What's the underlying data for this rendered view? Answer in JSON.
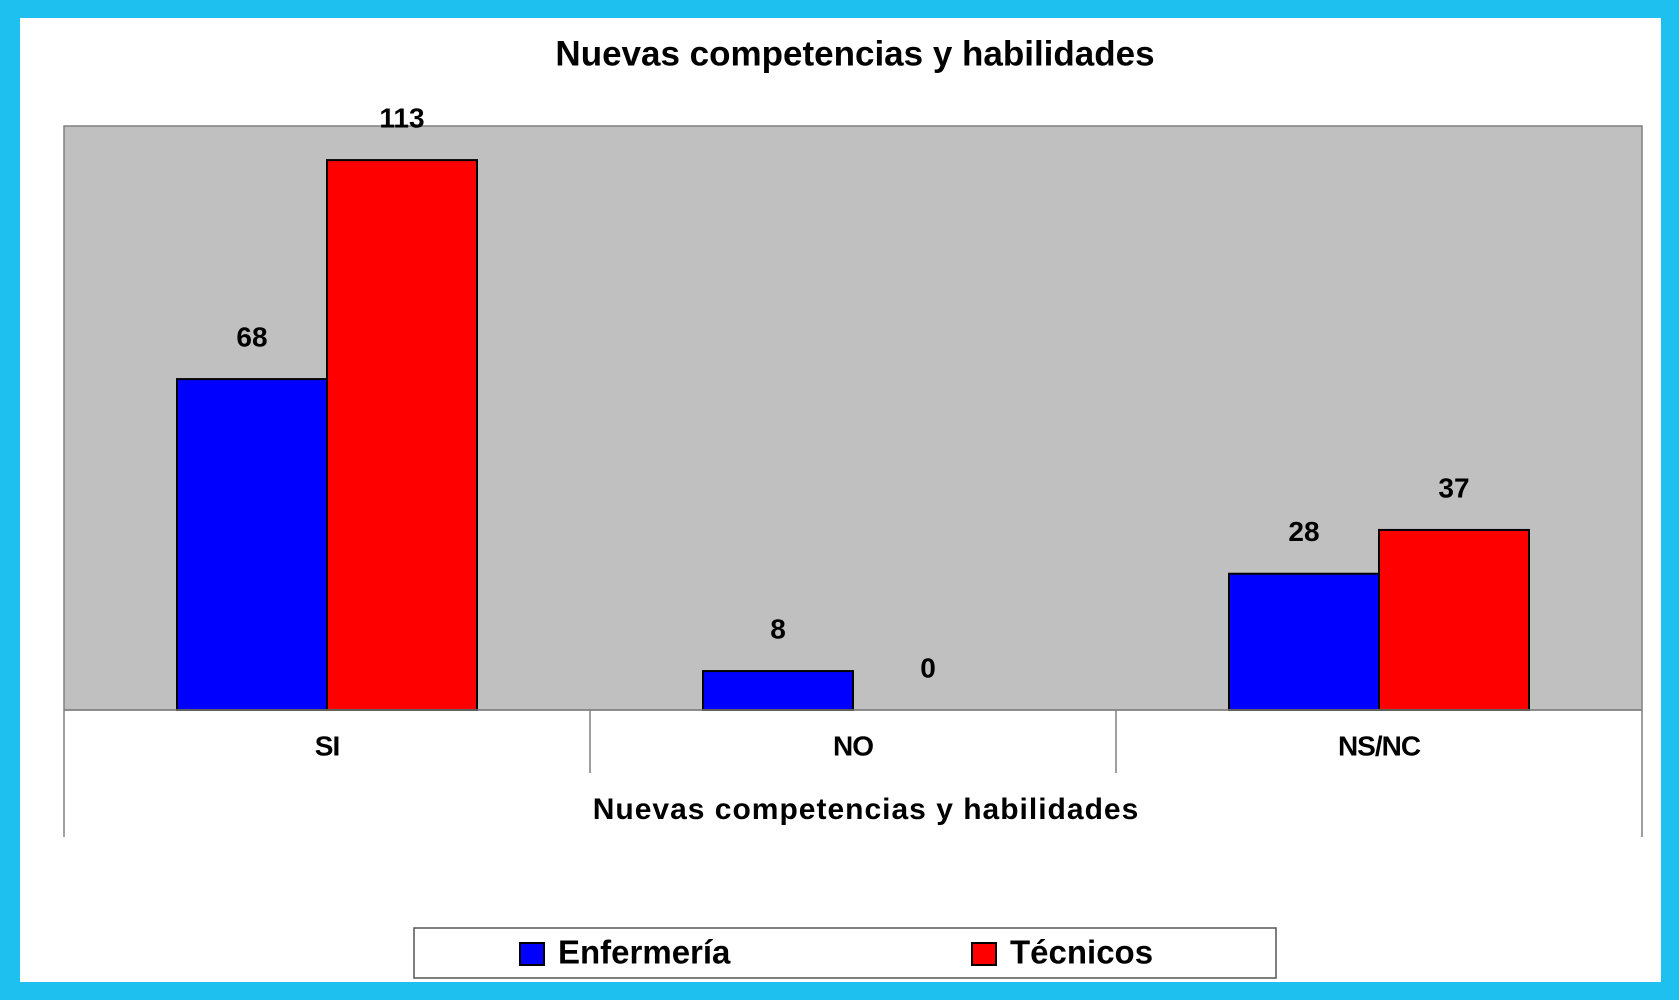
{
  "chart_data": {
    "type": "bar",
    "title": "Nuevas competencias y habilidades",
    "x_label": "Nuevas competencias y habilidades",
    "categories": [
      "SI",
      "NO",
      "NS/NC"
    ],
    "series": [
      {
        "name": "Enfermería",
        "color": "#0000ff",
        "values": [
          68,
          8,
          28
        ]
      },
      {
        "name": "Técnicos",
        "color": "#ff0000",
        "values": [
          113,
          0,
          37
        ]
      }
    ],
    "legend": "bottom"
  }
}
